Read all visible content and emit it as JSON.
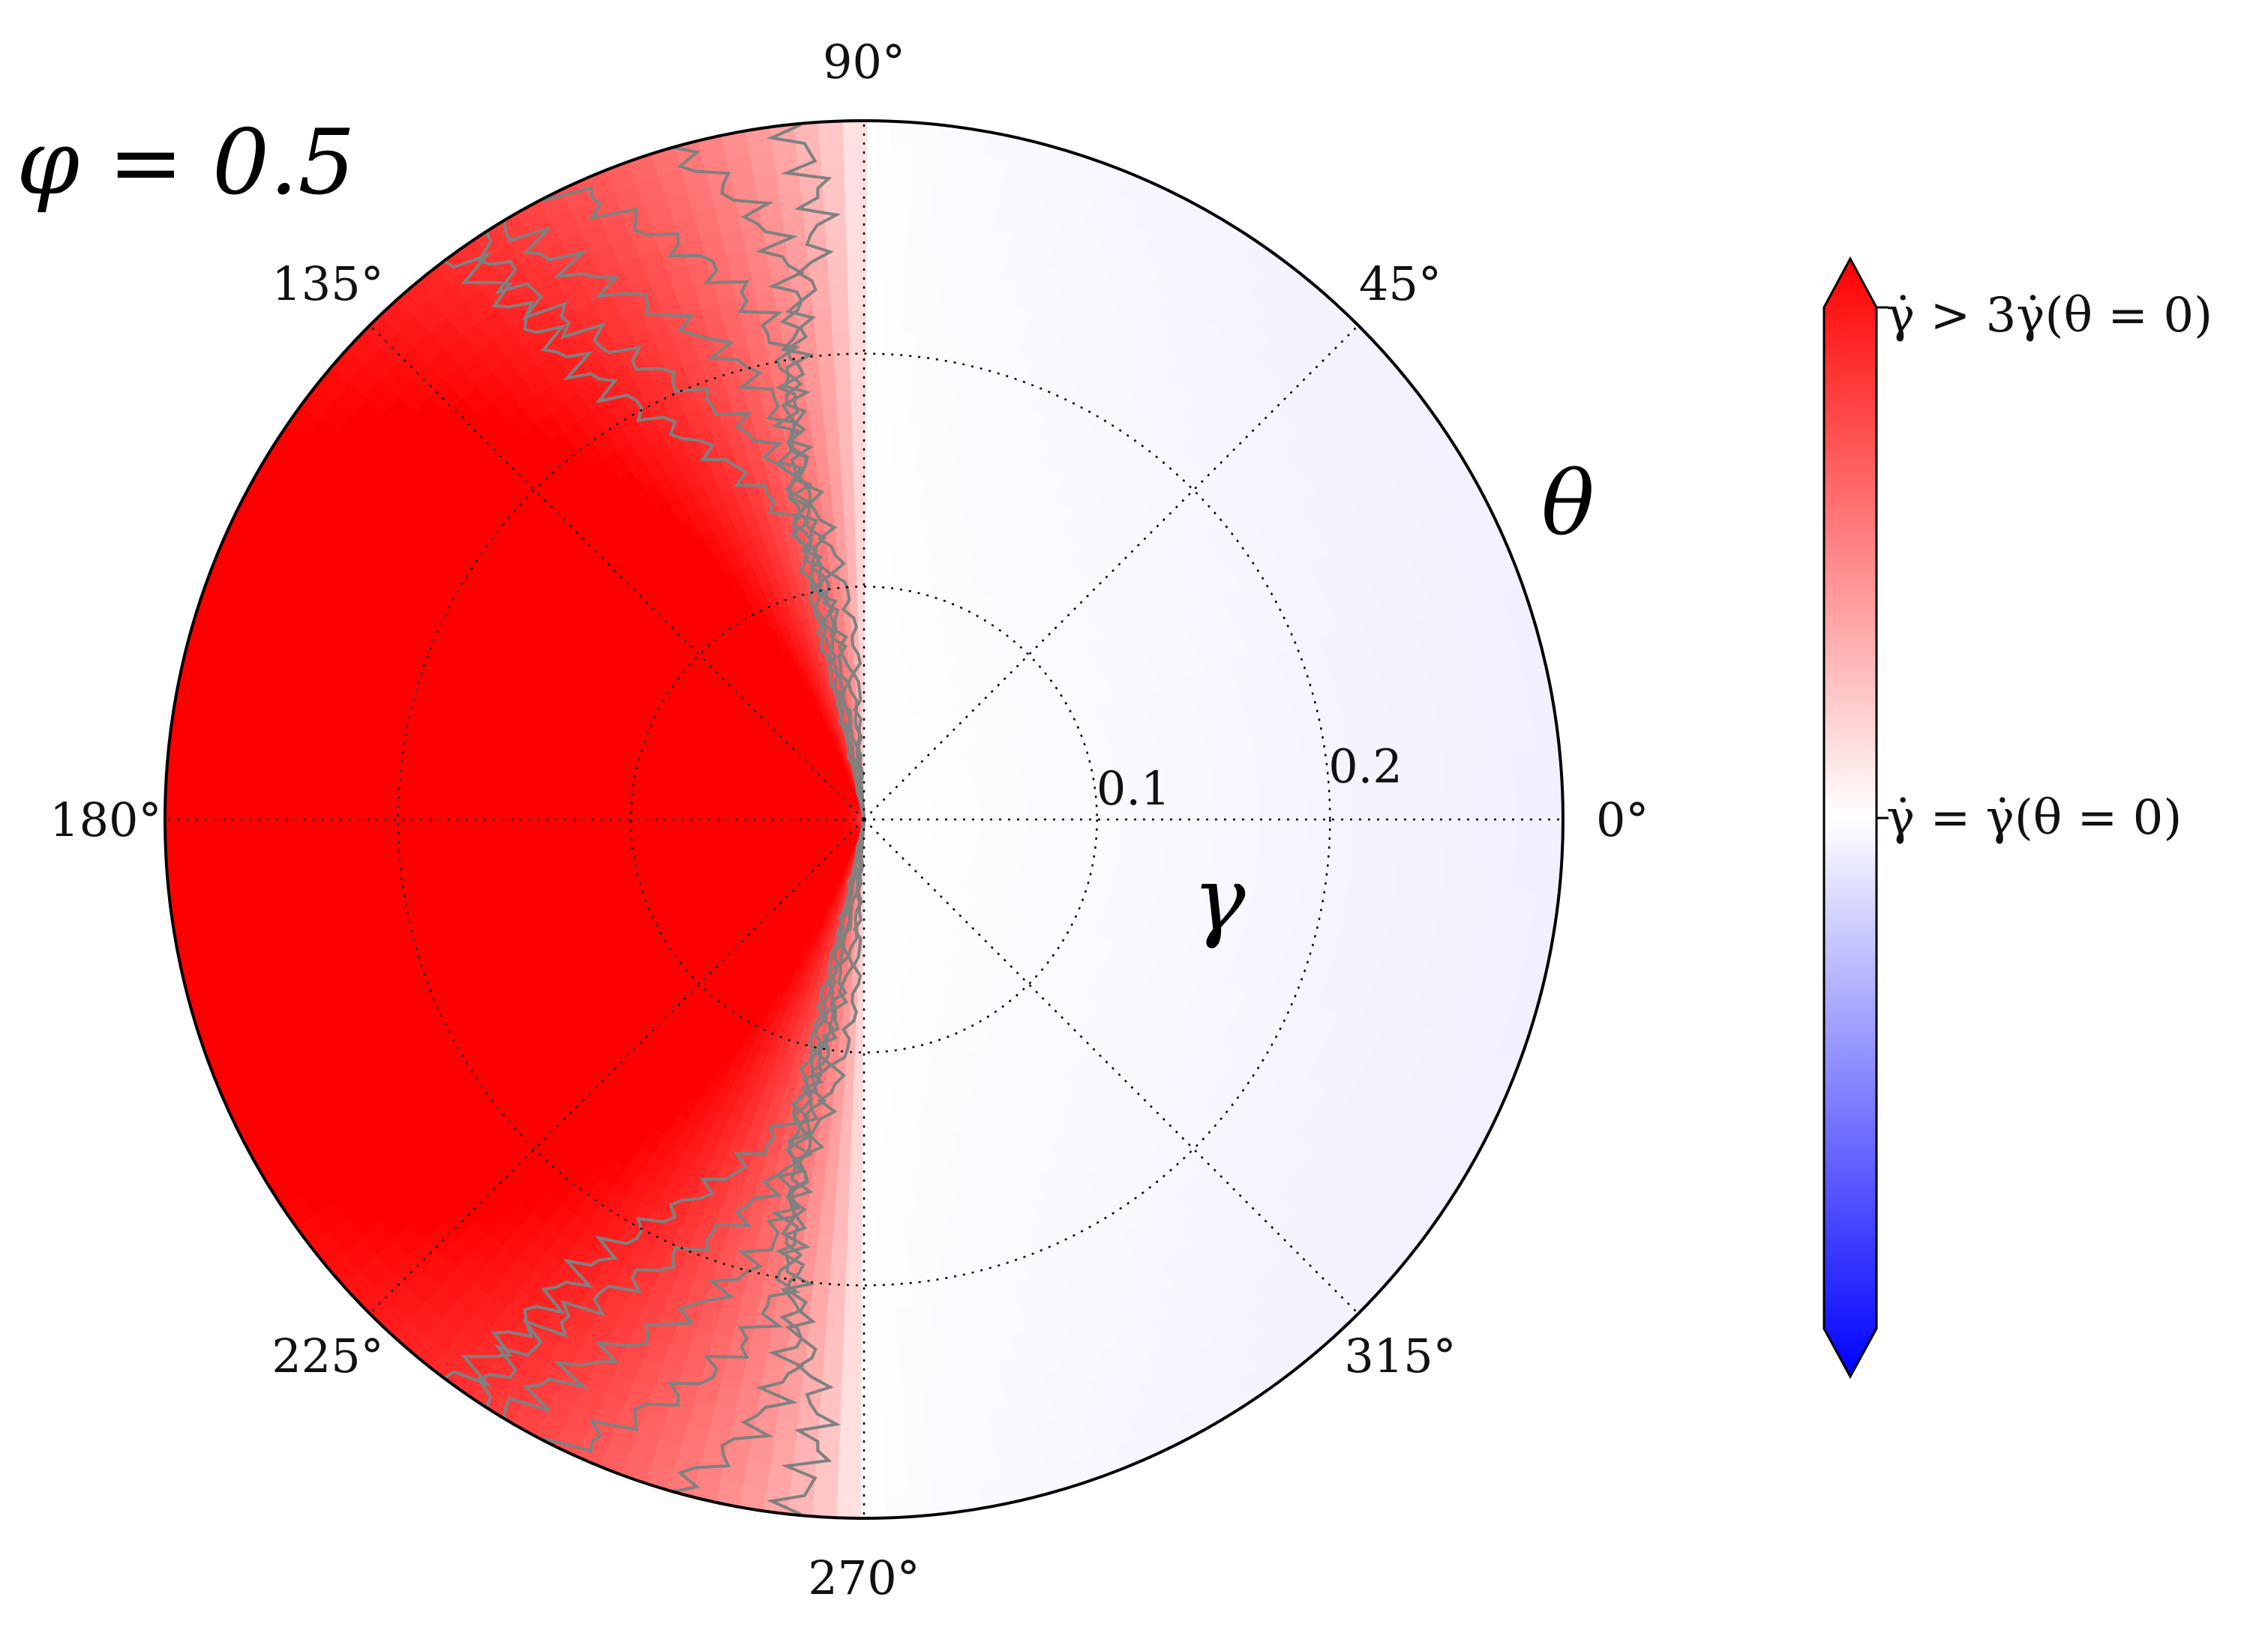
{
  "chart_data": {
    "type": "heatmap",
    "projection": "polar",
    "title": "φ = 0.5",
    "angular_axis": {
      "label": "θ",
      "unit": "deg",
      "ticks": [
        0,
        45,
        90,
        135,
        180,
        225,
        270,
        315
      ],
      "tick_labels": [
        "0°",
        "45°",
        "90°",
        "135°",
        "180°",
        "225°",
        "270°",
        "315°"
      ],
      "grid": true
    },
    "radial_axis": {
      "label": "γ",
      "range": [
        0,
        0.3
      ],
      "ticks": [
        0.1,
        0.2
      ],
      "tick_labels": [
        "0.1",
        "0.2"
      ],
      "grid": true
    },
    "field_description": "shear-rate ratio γ̇ / γ̇(θ=0); ≈1 (white) for |θ| < 90°, rising to >3 (saturated red) around θ = 180°",
    "colormap": {
      "name": "bwr",
      "colors": [
        "#0000ff",
        "#ffffff",
        "#ff0000"
      ],
      "extend": "both",
      "labels": {
        "top": "γ̇ > 3γ̇(θ = 0)",
        "middle": "γ̇ = γ̇(θ = 0)"
      }
    },
    "contours": {
      "color": "#808080",
      "levels": [
        1.2,
        1.4,
        1.6,
        1.8,
        2.0,
        2.5
      ]
    }
  }
}
